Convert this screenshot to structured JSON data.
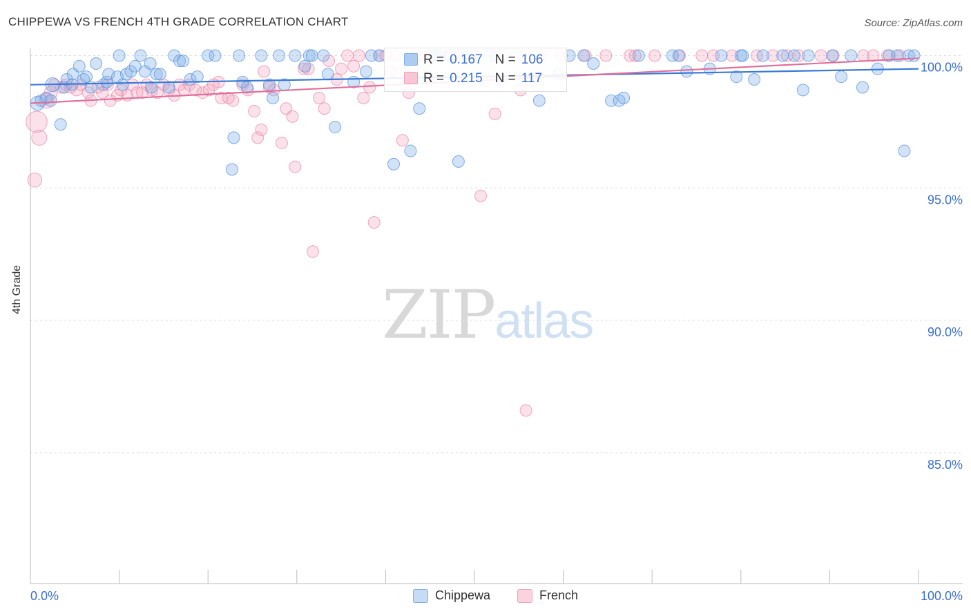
{
  "header": {
    "title": "CHIPPEWA VS FRENCH 4TH GRADE CORRELATION CHART",
    "source": "Source: ZipAtlas.com"
  },
  "watermark": {
    "part1": "ZIP",
    "part2": "atlas"
  },
  "colors": {
    "series1": "#7eaee8",
    "series1_line": "#3a7ad6",
    "series2": "#f3a0b8",
    "series2_line": "#e0709a",
    "axis_label": "#3a6fd1",
    "grid": "#dddddd"
  },
  "stats": {
    "rows": [
      {
        "r_label": "R =",
        "r_value": "0.167",
        "n_label": "N =",
        "n_value": "106"
      },
      {
        "r_label": "R =",
        "r_value": "0.215",
        "n_label": "N =",
        "n_value": "117"
      }
    ]
  },
  "legend": {
    "items": [
      "Chippewa",
      "French"
    ]
  },
  "chart_data": {
    "type": "scatter",
    "title": "CHIPPEWA VS FRENCH 4TH GRADE CORRELATION CHART",
    "xlabel": "",
    "ylabel": "4th Grade",
    "xlim": [
      0,
      100
    ],
    "ylim": [
      80.3,
      100.5
    ],
    "x_tick_labels": [
      "0.0%",
      "100.0%"
    ],
    "y_ticks": [
      85,
      90,
      95,
      100
    ],
    "y_tick_labels": [
      "85.0%",
      "90.0%",
      "95.0%",
      "100.0%"
    ],
    "grid": true,
    "legend_position": "bottom",
    "series": [
      {
        "name": "Chippewa",
        "trend": {
          "x": [
            0,
            100
          ],
          "y": [
            98.9,
            99.5
          ]
        },
        "points": [
          [
            0.8,
            98.2,
            12
          ],
          [
            1.2,
            98.3,
            10
          ],
          [
            1.8,
            98.4,
            10
          ],
          [
            2.3,
            98.3,
            10
          ],
          [
            2.5,
            98.9,
            12
          ],
          [
            3.4,
            97.4,
            10
          ],
          [
            3.8,
            98.8,
            10
          ],
          [
            4.1,
            99.1,
            10
          ],
          [
            4.7,
            98.9,
            10
          ],
          [
            4.8,
            99.3,
            10
          ],
          [
            5.5,
            99.6,
            10
          ],
          [
            6.0,
            99.1,
            10
          ],
          [
            6.3,
            99.2,
            10
          ],
          [
            6.8,
            98.8,
            10
          ],
          [
            7.4,
            99.7,
            10
          ],
          [
            8.2,
            98.9,
            10
          ],
          [
            8.6,
            99.0,
            10
          ],
          [
            8.8,
            99.3,
            10
          ],
          [
            9.8,
            99.2,
            10
          ],
          [
            10.0,
            100.0,
            10
          ],
          [
            10.4,
            98.9,
            10
          ],
          [
            10.8,
            99.3,
            10
          ],
          [
            11.3,
            99.4,
            10
          ],
          [
            11.8,
            99.6,
            10
          ],
          [
            12.4,
            100.0,
            10
          ],
          [
            12.9,
            99.4,
            10
          ],
          [
            13.5,
            99.7,
            10
          ],
          [
            13.6,
            98.8,
            10
          ],
          [
            14.2,
            99.3,
            10
          ],
          [
            14.6,
            99.3,
            10
          ],
          [
            15.6,
            98.8,
            10
          ],
          [
            16.2,
            100.0,
            10
          ],
          [
            16.8,
            99.8,
            10
          ],
          [
            17.2,
            99.8,
            10
          ],
          [
            18.0,
            99.1,
            10
          ],
          [
            18.8,
            99.2,
            10
          ],
          [
            20.0,
            100.0,
            10
          ],
          [
            20.8,
            100.0,
            10
          ],
          [
            22.7,
            95.7,
            10
          ],
          [
            22.9,
            96.9,
            10
          ],
          [
            23.5,
            100.0,
            10
          ],
          [
            23.9,
            99.0,
            10
          ],
          [
            24.4,
            98.8,
            10
          ],
          [
            26.0,
            100.0,
            10
          ],
          [
            26.9,
            98.9,
            10
          ],
          [
            27.3,
            98.4,
            10
          ],
          [
            28.0,
            100.0,
            10
          ],
          [
            28.6,
            98.9,
            10
          ],
          [
            29.8,
            100.0,
            10
          ],
          [
            30.9,
            99.6,
            10
          ],
          [
            31.4,
            100.0,
            10
          ],
          [
            31.7,
            100.0,
            10
          ],
          [
            33.0,
            100.0,
            10
          ],
          [
            33.5,
            99.3,
            10
          ],
          [
            34.3,
            97.3,
            10
          ],
          [
            36.4,
            99.0,
            10
          ],
          [
            37.8,
            99.4,
            10
          ],
          [
            38.4,
            100.0,
            10
          ],
          [
            39.3,
            100.0,
            10
          ],
          [
            40.9,
            95.9,
            10
          ],
          [
            42.3,
            99.2,
            10
          ],
          [
            42.8,
            96.4,
            10
          ],
          [
            43.8,
            98.0,
            10
          ],
          [
            44.7,
            99.2,
            10
          ],
          [
            45.5,
            100.0,
            10
          ],
          [
            46.0,
            100.0,
            10
          ],
          [
            47.3,
            100.0,
            10
          ],
          [
            48.2,
            96.0,
            10
          ],
          [
            49.6,
            100.0,
            10
          ],
          [
            51.8,
            100.0,
            10
          ],
          [
            52.4,
            100.0,
            10
          ],
          [
            53.0,
            99.1,
            10
          ],
          [
            54.8,
            100.0,
            10
          ],
          [
            57.3,
            98.3,
            10
          ],
          [
            59.5,
            99.3,
            10
          ],
          [
            60.7,
            100.0,
            10
          ],
          [
            62.3,
            100.0,
            10
          ],
          [
            63.4,
            99.7,
            10
          ],
          [
            65.4,
            98.3,
            10
          ],
          [
            66.3,
            98.3,
            10
          ],
          [
            66.8,
            98.4,
            10
          ],
          [
            68.5,
            100.0,
            10
          ],
          [
            72.3,
            100.0,
            10
          ],
          [
            73.0,
            100.0,
            10
          ],
          [
            73.9,
            99.4,
            10
          ],
          [
            76.5,
            99.5,
            10
          ],
          [
            77.8,
            100.0,
            10
          ],
          [
            79.5,
            99.2,
            10
          ],
          [
            80.0,
            100.0,
            10
          ],
          [
            80.2,
            100.0,
            10
          ],
          [
            81.5,
            99.1,
            10
          ],
          [
            82.5,
            100.0,
            10
          ],
          [
            84.7,
            100.0,
            10
          ],
          [
            86.0,
            100.0,
            10
          ],
          [
            87.0,
            98.7,
            10
          ],
          [
            87.6,
            100.0,
            10
          ],
          [
            90.3,
            100.0,
            10
          ],
          [
            91.3,
            99.2,
            10
          ],
          [
            92.4,
            100.0,
            10
          ],
          [
            93.7,
            98.8,
            10
          ],
          [
            95.4,
            99.5,
            10
          ],
          [
            96.7,
            100.0,
            10
          ],
          [
            97.6,
            100.0,
            10
          ],
          [
            98.4,
            96.4,
            10
          ],
          [
            98.9,
            100.0,
            10
          ],
          [
            99.5,
            100.0,
            10
          ]
        ]
      },
      {
        "name": "French",
        "trend": {
          "x": [
            0,
            100
          ],
          "y": [
            98.2,
            99.9
          ]
        },
        "points": [
          [
            0.5,
            95.3,
            12
          ],
          [
            0.7,
            97.5,
            18
          ],
          [
            1.0,
            96.9,
            13
          ],
          [
            1.8,
            98.3,
            13
          ],
          [
            2.3,
            98.6,
            11
          ],
          [
            2.7,
            98.9,
            10
          ],
          [
            3.5,
            98.8,
            10
          ],
          [
            4.0,
            98.9,
            10
          ],
          [
            4.5,
            98.8,
            10
          ],
          [
            5.2,
            98.7,
            10
          ],
          [
            5.7,
            98.9,
            10
          ],
          [
            6.5,
            98.6,
            10
          ],
          [
            6.8,
            98.3,
            10
          ],
          [
            7.6,
            98.8,
            10
          ],
          [
            8.1,
            98.6,
            10
          ],
          [
            8.7,
            98.9,
            10
          ],
          [
            9.0,
            98.3,
            10
          ],
          [
            9.8,
            98.5,
            10
          ],
          [
            10.2,
            98.7,
            10
          ],
          [
            10.9,
            98.5,
            10
          ],
          [
            11.5,
            98.9,
            10
          ],
          [
            12.0,
            98.6,
            10
          ],
          [
            12.6,
            98.6,
            10
          ],
          [
            13.1,
            98.9,
            10
          ],
          [
            13.7,
            98.7,
            10
          ],
          [
            14.3,
            98.6,
            10
          ],
          [
            15.0,
            98.9,
            10
          ],
          [
            15.6,
            98.7,
            10
          ],
          [
            16.2,
            98.5,
            10
          ],
          [
            16.8,
            98.9,
            10
          ],
          [
            17.3,
            98.7,
            10
          ],
          [
            17.9,
            98.9,
            10
          ],
          [
            18.6,
            98.7,
            10
          ],
          [
            19.4,
            98.6,
            10
          ],
          [
            20.1,
            98.7,
            10
          ],
          [
            20.6,
            98.9,
            10
          ],
          [
            21.2,
            99.0,
            10
          ],
          [
            21.5,
            98.4,
            10
          ],
          [
            22.3,
            98.4,
            10
          ],
          [
            22.8,
            98.3,
            10
          ],
          [
            23.9,
            98.9,
            10
          ],
          [
            24.5,
            98.7,
            10
          ],
          [
            25.2,
            97.9,
            10
          ],
          [
            25.6,
            96.9,
            10
          ],
          [
            26.0,
            97.2,
            10
          ],
          [
            26.3,
            99.4,
            10
          ],
          [
            26.9,
            98.8,
            10
          ],
          [
            27.4,
            98.7,
            10
          ],
          [
            28.3,
            96.7,
            10
          ],
          [
            28.8,
            98.0,
            10
          ],
          [
            29.5,
            97.7,
            10
          ],
          [
            29.8,
            95.8,
            10
          ],
          [
            30.8,
            99.5,
            10
          ],
          [
            31.3,
            99.5,
            10
          ],
          [
            31.8,
            92.6,
            10
          ],
          [
            32.5,
            98.4,
            10
          ],
          [
            33.1,
            98.0,
            10
          ],
          [
            33.6,
            99.8,
            10
          ],
          [
            34.5,
            99.1,
            10
          ],
          [
            35.0,
            99.5,
            10
          ],
          [
            35.7,
            100.0,
            10
          ],
          [
            36.4,
            99.6,
            10
          ],
          [
            37.0,
            100.0,
            10
          ],
          [
            37.5,
            98.4,
            10
          ],
          [
            38.2,
            98.8,
            10
          ],
          [
            38.7,
            93.7,
            10
          ],
          [
            39.3,
            100.0,
            10
          ],
          [
            40.0,
            100.0,
            10
          ],
          [
            40.6,
            99.4,
            10
          ],
          [
            41.2,
            100.0,
            10
          ],
          [
            41.9,
            96.8,
            10
          ],
          [
            42.6,
            98.6,
            10
          ],
          [
            43.3,
            100.0,
            10
          ],
          [
            44.1,
            100.0,
            10
          ],
          [
            45.0,
            100.0,
            10
          ],
          [
            46.2,
            100.0,
            10
          ],
          [
            47.2,
            100.0,
            10
          ],
          [
            48.0,
            100.0,
            10
          ],
          [
            50.7,
            94.7,
            10
          ],
          [
            52.3,
            97.8,
            10
          ],
          [
            53.2,
            100.0,
            10
          ],
          [
            55.2,
            98.7,
            10
          ],
          [
            55.8,
            86.6,
            10
          ],
          [
            57.4,
            100.0,
            10
          ],
          [
            59.8,
            100.0,
            10
          ],
          [
            62.5,
            100.0,
            10
          ],
          [
            64.8,
            100.0,
            10
          ],
          [
            67.5,
            100.0,
            10
          ],
          [
            68.1,
            100.0,
            10
          ],
          [
            70.3,
            100.0,
            10
          ],
          [
            73.1,
            100.0,
            10
          ],
          [
            75.6,
            100.0,
            10
          ],
          [
            76.9,
            100.0,
            10
          ],
          [
            79.0,
            100.0,
            10
          ],
          [
            81.8,
            100.0,
            10
          ],
          [
            83.6,
            100.0,
            10
          ],
          [
            85.2,
            100.0,
            10
          ],
          [
            86.5,
            100.0,
            10
          ],
          [
            89.0,
            100.0,
            10
          ],
          [
            90.4,
            100.0,
            10
          ],
          [
            93.8,
            100.0,
            10
          ],
          [
            94.9,
            100.0,
            10
          ],
          [
            96.5,
            100.0,
            10
          ],
          [
            97.9,
            100.0,
            10
          ]
        ]
      }
    ]
  }
}
